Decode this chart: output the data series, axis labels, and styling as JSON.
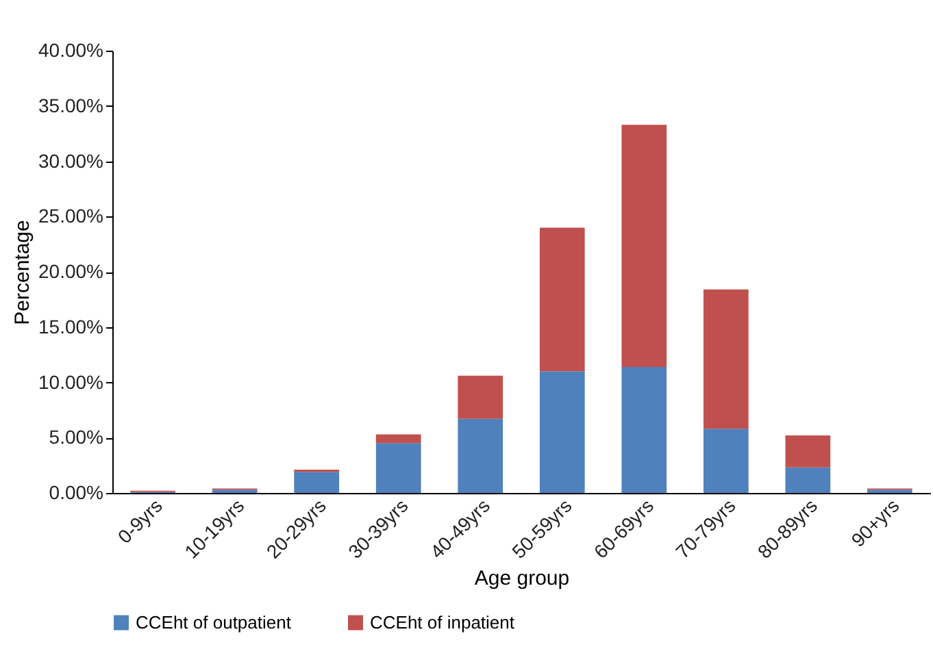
{
  "chart_data": {
    "type": "bar",
    "stacked": true,
    "xlabel": "Age group",
    "ylabel": "Percentage",
    "categories": [
      "0-9yrs",
      "10-19yrs",
      "20-29yrs",
      "30-39yrs",
      "40-49yrs",
      "50-59yrs",
      "60-69yrs",
      "70-79yrs",
      "80-89yrs",
      "90+yrs"
    ],
    "series": [
      {
        "name": "CCEht of outpatient",
        "color": "#4f81bd",
        "values": [
          0.1,
          0.3,
          1.9,
          4.5,
          6.7,
          11.0,
          11.4,
          5.8,
          2.3,
          0.3
        ]
      },
      {
        "name": "CCEht of inpatient",
        "color": "#c0504d",
        "values": [
          0.1,
          0.1,
          0.2,
          0.8,
          3.9,
          13.0,
          21.9,
          12.6,
          2.9,
          0.1
        ]
      }
    ],
    "ylim": [
      0,
      40
    ],
    "yticks": [
      {
        "value": 0,
        "label": "0.00%"
      },
      {
        "value": 5,
        "label": "5.00%"
      },
      {
        "value": 10,
        "label": "10.00%"
      },
      {
        "value": 15,
        "label": "15.00%"
      },
      {
        "value": 20,
        "label": "20.00%"
      },
      {
        "value": 25,
        "label": "25.00%"
      },
      {
        "value": 30,
        "label": "30.00%"
      },
      {
        "value": 35,
        "label": "35.00%"
      },
      {
        "value": 40,
        "label": "40.00%"
      }
    ],
    "grid": false,
    "legend": "bottom"
  }
}
